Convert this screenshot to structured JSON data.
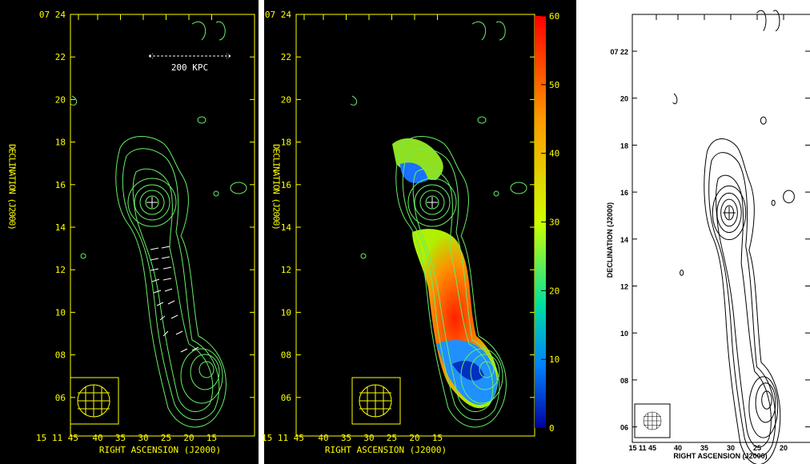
{
  "panels": [
    {
      "yticks": [
        "07 24",
        "22",
        "20",
        "18",
        "16",
        "14",
        "12",
        "10",
        "08",
        "06"
      ],
      "xticks": [
        "15 11 45",
        "40",
        "35",
        "30",
        "25",
        "20",
        "15"
      ],
      "xlabel": "RIGHT ASCENSION (J2000)",
      "ylabel": "DECLINATION (J2000)",
      "scalebar": "200 KPC"
    },
    {
      "yticks": [
        "07 24",
        "22",
        "20",
        "18",
        "16",
        "14",
        "12",
        "10",
        "08",
        "06"
      ],
      "xticks": [
        "15 11 45",
        "40",
        "35",
        "30",
        "25",
        "20",
        "15"
      ],
      "xlabel": "RIGHT ASCENSION (J2000)",
      "ylabel": "DECLINATION (J2000)",
      "colorbar": {
        "range": [
          0,
          60
        ],
        "ticks": [
          60,
          50,
          40,
          30,
          20,
          10,
          0
        ]
      }
    },
    {
      "yticks": [
        "07 22",
        "20",
        "18",
        "16",
        "14",
        "12",
        "10",
        "08",
        "06"
      ],
      "xticks": [
        "15 11 45",
        "40",
        "35",
        "30",
        "25",
        "20"
      ],
      "xlabel": "RIGHT ASCENSION (J2000)",
      "ylabel": "DECLINATION (J2000)"
    }
  ]
}
